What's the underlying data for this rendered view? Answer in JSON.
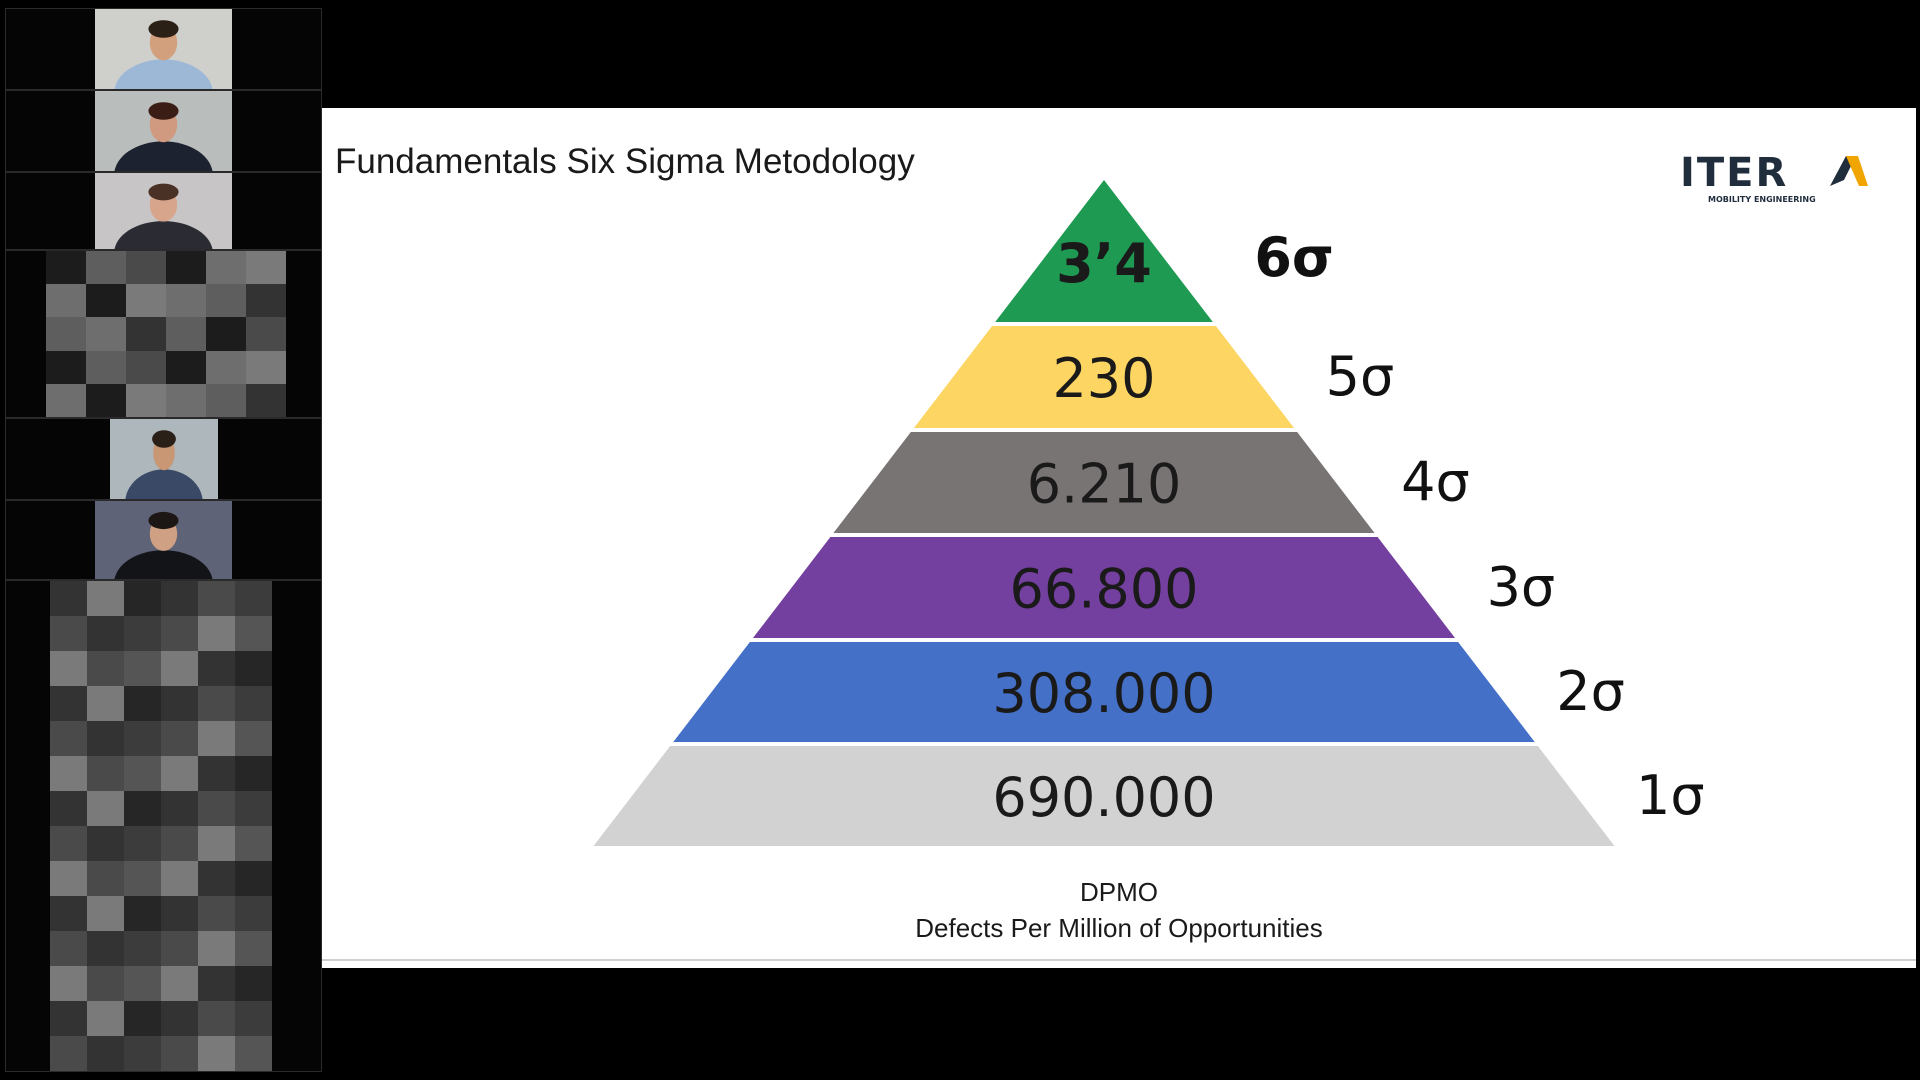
{
  "slide": {
    "title": "Fundamentals Six Sigma Metodology",
    "logo": {
      "name": "ITERA",
      "tagline": "MOBILITY ENGINEERING",
      "accent_color": "#f0a500",
      "text_color": "#1f2d3d"
    },
    "pyramid": {
      "levels": [
        {
          "value": "3’4",
          "sigma": "6σ",
          "color": "#1e9a52"
        },
        {
          "value": "230",
          "sigma": "5σ",
          "color": "#fdd562"
        },
        {
          "value": "6.210",
          "sigma": "4σ",
          "color": "#797474"
        },
        {
          "value": "66.800",
          "sigma": "3σ",
          "color": "#7440a0"
        },
        {
          "value": "308.000",
          "sigma": "2σ",
          "color": "#4470c8"
        },
        {
          "value": "690.000",
          "sigma": "1σ",
          "color": "#d2d2d2"
        }
      ]
    },
    "caption": {
      "line1": "DPMO",
      "line2": "Defects Per Million of Opportunities"
    }
  },
  "participants": [
    {
      "type": "video",
      "shirt": "#9db8d6",
      "skin": "#d2a07c",
      "hair": "#2b2016",
      "bg": "#cfd0cc"
    },
    {
      "type": "video",
      "shirt": "#1d2230",
      "skin": "#cf9a80",
      "hair": "#3a1e16",
      "bg": "#b9bdbb"
    },
    {
      "type": "video",
      "shirt": "#2b2b33",
      "skin": "#d7a58c",
      "hair": "#4a3126",
      "bg": "#c7c5c5"
    },
    {
      "type": "blurred"
    },
    {
      "type": "video",
      "shirt": "#3a4a66",
      "skin": "#c99774",
      "hair": "#2a2018",
      "bg": "#aeb7bb"
    },
    {
      "type": "video",
      "shirt": "#121418",
      "skin": "#cfa083",
      "hair": "#1c1614",
      "bg": "#5f6377"
    },
    {
      "type": "blurred"
    }
  ]
}
